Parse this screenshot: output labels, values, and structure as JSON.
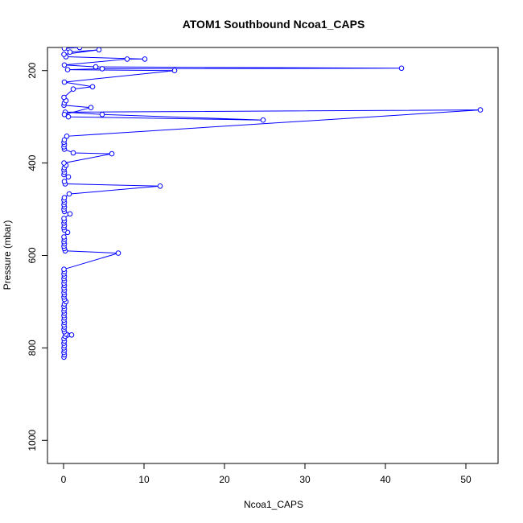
{
  "chart_data": {
    "type": "line",
    "title": "ATOM1 Southbound Ncoa1_CAPS",
    "xlabel": "Ncoa1_CAPS",
    "ylabel": "Pressure (mbar)",
    "xlim": [
      -2,
      54
    ],
    "ylim": [
      1050,
      150
    ],
    "y_reversed": true,
    "x_ticks": [
      0,
      10,
      20,
      30,
      40,
      50
    ],
    "y_ticks": [
      200,
      400,
      600,
      800,
      1000
    ],
    "grid": false,
    "legend": "none",
    "series": [
      {
        "color": "#0000ff",
        "marker": "open-circle",
        "points": [
          [
            0.05,
            820
          ],
          [
            0.1,
            815
          ],
          [
            0.05,
            810
          ],
          [
            0.1,
            805
          ],
          [
            0.05,
            800
          ],
          [
            0.1,
            795
          ],
          [
            0.05,
            790
          ],
          [
            0.1,
            785
          ],
          [
            0.05,
            780
          ],
          [
            0.2,
            775
          ],
          [
            0.5,
            772
          ],
          [
            1.0,
            772
          ],
          [
            0.3,
            770
          ],
          [
            0.1,
            765
          ],
          [
            0.05,
            760
          ],
          [
            0.1,
            755
          ],
          [
            0.05,
            750
          ],
          [
            0.1,
            745
          ],
          [
            0.05,
            740
          ],
          [
            0.1,
            735
          ],
          [
            0.05,
            730
          ],
          [
            0.1,
            725
          ],
          [
            0.05,
            720
          ],
          [
            0.1,
            715
          ],
          [
            0.05,
            710
          ],
          [
            0.1,
            705
          ],
          [
            0.3,
            700
          ],
          [
            0.1,
            695
          ],
          [
            0.05,
            690
          ],
          [
            0.1,
            685
          ],
          [
            0.05,
            680
          ],
          [
            0.1,
            675
          ],
          [
            0.05,
            670
          ],
          [
            0.1,
            665
          ],
          [
            0.05,
            660
          ],
          [
            0.1,
            655
          ],
          [
            0.05,
            650
          ],
          [
            0.1,
            645
          ],
          [
            0.05,
            640
          ],
          [
            0.1,
            635
          ],
          [
            0.05,
            630
          ],
          [
            6.8,
            595
          ],
          [
            0.2,
            590
          ],
          [
            0.1,
            585
          ],
          [
            0.05,
            580
          ],
          [
            0.1,
            575
          ],
          [
            0.05,
            570
          ],
          [
            0.1,
            565
          ],
          [
            0.05,
            560
          ],
          [
            0.5,
            550
          ],
          [
            0.1,
            545
          ],
          [
            0.05,
            540
          ],
          [
            0.1,
            535
          ],
          [
            0.05,
            530
          ],
          [
            0.1,
            525
          ],
          [
            0.05,
            520
          ],
          [
            0.8,
            510
          ],
          [
            0.1,
            505
          ],
          [
            0.05,
            500
          ],
          [
            0.1,
            495
          ],
          [
            0.05,
            490
          ],
          [
            0.1,
            485
          ],
          [
            0.05,
            480
          ],
          [
            0.1,
            475
          ],
          [
            0.7,
            467
          ],
          [
            12.0,
            450
          ],
          [
            0.2,
            445
          ],
          [
            0.1,
            440
          ],
          [
            0.6,
            430
          ],
          [
            0.05,
            425
          ],
          [
            0.1,
            420
          ],
          [
            0.05,
            415
          ],
          [
            0.1,
            410
          ],
          [
            0.3,
            405
          ],
          [
            0.05,
            400
          ],
          [
            6.0,
            380
          ],
          [
            1.2,
            378
          ],
          [
            0.1,
            370
          ],
          [
            0.05,
            365
          ],
          [
            0.1,
            360
          ],
          [
            0.05,
            355
          ],
          [
            0.1,
            350
          ],
          [
            0.4,
            342
          ],
          [
            51.8,
            285
          ],
          [
            0.2,
            290
          ],
          [
            4.8,
            295
          ],
          [
            24.8,
            307
          ],
          [
            0.6,
            300
          ],
          [
            0.1,
            295
          ],
          [
            3.4,
            280
          ],
          [
            0.05,
            275
          ],
          [
            0.1,
            270
          ],
          [
            0.3,
            265
          ],
          [
            0.05,
            258
          ],
          [
            1.2,
            240
          ],
          [
            3.6,
            235
          ],
          [
            0.1,
            225
          ],
          [
            13.8,
            200
          ],
          [
            0.5,
            198
          ],
          [
            4.8,
            196
          ],
          [
            42.0,
            195
          ],
          [
            4.0,
            192
          ],
          [
            0.1,
            188
          ],
          [
            7.9,
            175
          ],
          [
            10.1,
            175
          ],
          [
            0.3,
            170
          ],
          [
            0.05,
            165
          ],
          [
            4.4,
            155
          ],
          [
            0.8,
            160
          ],
          [
            0.1,
            152
          ],
          [
            2.0,
            150
          ]
        ]
      }
    ]
  }
}
